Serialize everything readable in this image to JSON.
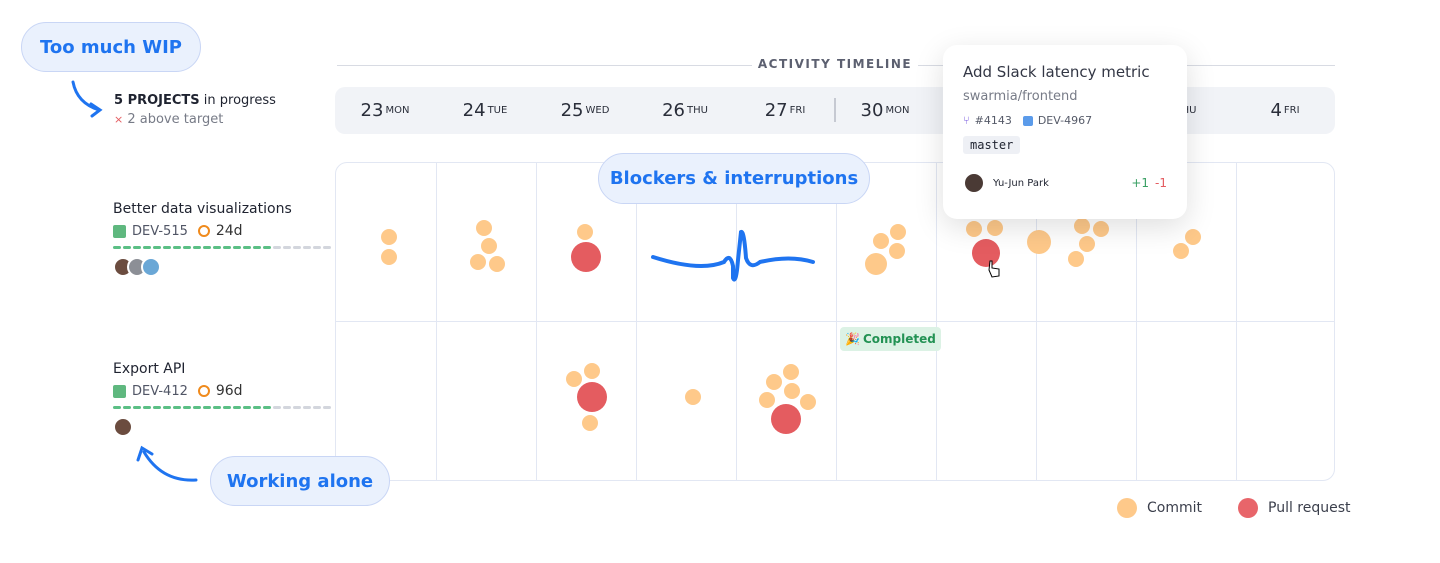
{
  "callouts": {
    "wip": "Too much WIP",
    "blockers": "Blockers & interruptions",
    "alone": "Working alone"
  },
  "summary": {
    "count": "5 PROJECTS",
    "suffix": " in progress",
    "warn_icon": "×",
    "warn": "2 above target"
  },
  "timeline": {
    "title": "ACTIVITY TIMELINE",
    "days": [
      {
        "num": "23",
        "dow": "MON"
      },
      {
        "num": "24",
        "dow": "TUE"
      },
      {
        "num": "25",
        "dow": "WED"
      },
      {
        "num": "26",
        "dow": "THU"
      },
      {
        "num": "27",
        "dow": "FRI"
      },
      {
        "num": "30",
        "dow": "MON"
      },
      {
        "num": "",
        "dow": ""
      },
      {
        "num": "",
        "dow": ""
      },
      {
        "num": "",
        "dow": "THU"
      },
      {
        "num": "4",
        "dow": "FRI"
      }
    ]
  },
  "projects": [
    {
      "name": "Better data visualizations",
      "issue": "DEV-515",
      "age": "24d",
      "progress": 0.73,
      "avatars": 3
    },
    {
      "name": "Export API",
      "issue": "DEV-412",
      "age": "96d",
      "progress": 0.73,
      "avatars": 1
    }
  ],
  "completed_badge": {
    "icon": "🎉",
    "label": "Completed"
  },
  "tooltip": {
    "title": "Add Slack latency metric",
    "repo": "swarmia/frontend",
    "pr": "#4143",
    "issue": "DEV-4967",
    "branch": "master",
    "author": "Yu-Jun Park",
    "added": "+1",
    "removed": "-1"
  },
  "legend": {
    "commit": "Commit",
    "pr": "Pull request"
  },
  "colors": {
    "commit": "#fec98a",
    "pr": "#e45c60",
    "accent": "#1f74f0",
    "progress": "#5bbf85"
  }
}
